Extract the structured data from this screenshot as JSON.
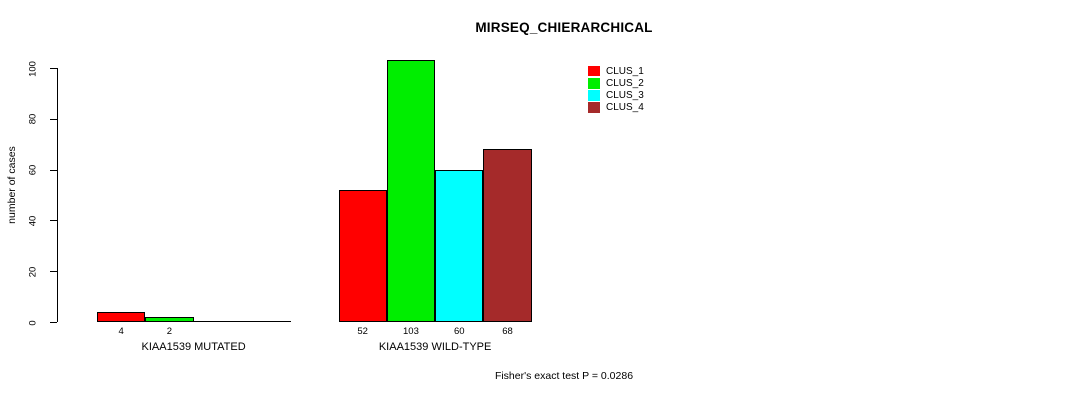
{
  "chart_data": {
    "type": "bar",
    "title": "MIRSEQ_CHIERARCHICAL",
    "ylabel": "number of cases",
    "xlabel": "",
    "footer": "Fisher's exact test P = 0.0286",
    "ylim": [
      0,
      110
    ],
    "yticks": [
      0,
      20,
      40,
      60,
      80,
      100
    ],
    "grid": false,
    "legend_position": "top-right-inside",
    "legend": [
      {
        "label": "CLUS_1",
        "color": "#ff0000"
      },
      {
        "label": "CLUS_2",
        "color": "#00ee00"
      },
      {
        "label": "CLUS_3",
        "color": "#00ffff"
      },
      {
        "label": "CLUS_4",
        "color": "#a52a2a"
      }
    ],
    "categories": [
      "KIAA1539 MUTATED",
      "KIAA1539 WILD-TYPE"
    ],
    "series": [
      {
        "name": "CLUS_1",
        "values": [
          4,
          52
        ]
      },
      {
        "name": "CLUS_2",
        "values": [
          2,
          103
        ]
      },
      {
        "name": "CLUS_3",
        "values": [
          0,
          60
        ]
      },
      {
        "name": "CLUS_4",
        "values": [
          0,
          68
        ]
      }
    ],
    "bar_value_labels": [
      [
        "4",
        "2",
        null,
        null
      ],
      [
        "52",
        "103",
        "60",
        "68"
      ]
    ]
  }
}
